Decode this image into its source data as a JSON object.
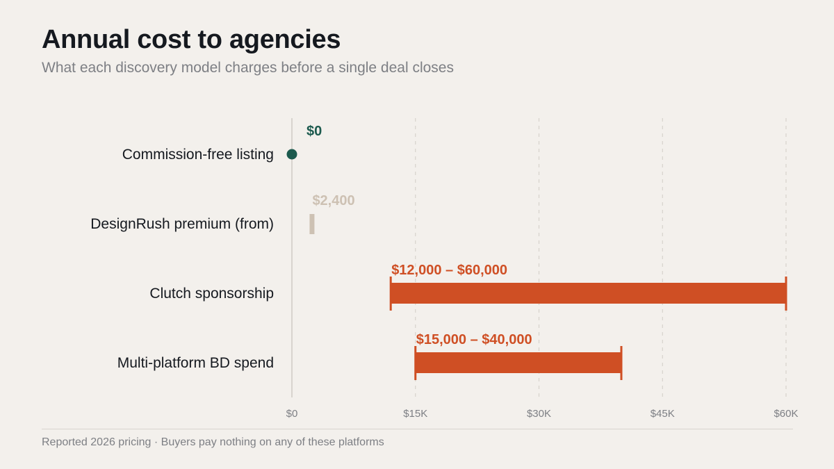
{
  "header": {
    "title": "Annual cost to agencies",
    "subtitle": "What each discovery model charges before a single deal closes"
  },
  "footer": {
    "note": "Reported 2026 pricing · Buyers pay nothing on any of these platforms"
  },
  "colors": {
    "free": "#1c5a4e",
    "designrush": "#cdc1b3",
    "range": "#cf4f24",
    "grid": "#d6d2cc",
    "tick_text": "#7d7f84",
    "category_text": "#15191f"
  },
  "chart_data": {
    "type": "range-bar",
    "title": "Annual cost to agencies",
    "subtitle": "What each discovery model charges before a single deal closes",
    "xlim": [
      0,
      60000
    ],
    "xticks": [
      0,
      15000,
      30000,
      45000,
      60000
    ],
    "xtick_labels": [
      "$0",
      "$15K",
      "$30K",
      "$45K",
      "$60K"
    ],
    "grid": "vertical dashed",
    "categories": [
      "Commission-free listing",
      "DesignRush premium (from)",
      "Clutch sponsorship",
      "Multi-platform BD spend"
    ],
    "items": [
      {
        "label": "Commission-free listing",
        "start": 0,
        "end": 0,
        "mark": "dot",
        "value_label": "$0",
        "color_key": "free"
      },
      {
        "label": "DesignRush premium (from)",
        "start": 2400,
        "end": 2400,
        "mark": "tick",
        "value_label": "$2,400",
        "color_key": "designrush"
      },
      {
        "label": "Clutch sponsorship",
        "start": 12000,
        "end": 60000,
        "mark": "range",
        "value_label": "$12,000 – $60,000",
        "color_key": "range"
      },
      {
        "label": "Multi-platform BD spend",
        "start": 15000,
        "end": 40000,
        "mark": "range",
        "value_label": "$15,000 – $40,000",
        "color_key": "range"
      }
    ]
  }
}
